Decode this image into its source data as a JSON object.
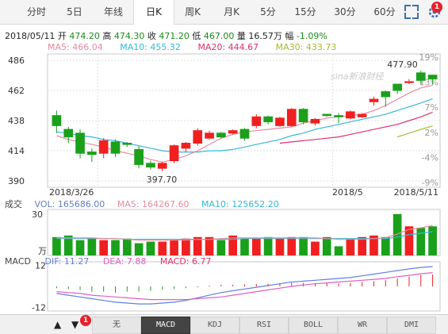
{
  "tabs": [
    {
      "label": "分时",
      "active": false
    },
    {
      "label": "5日",
      "active": false
    },
    {
      "label": "年线",
      "active": false
    },
    {
      "label": "日K",
      "active": true
    },
    {
      "label": "周K",
      "active": false
    },
    {
      "label": "月K",
      "active": false
    },
    {
      "label": "5分",
      "active": false
    },
    {
      "label": "15分",
      "active": false
    },
    {
      "label": "30分",
      "active": false
    },
    {
      "label": "60分",
      "active": false
    }
  ],
  "notification_count": "1",
  "info": {
    "date": "2018/05/11",
    "open_label": "开",
    "open": "474.20",
    "high_label": "高",
    "high": "474.30",
    "close_label": "收",
    "close": "471.20",
    "low_label": "低",
    "low": "467.00",
    "volume_label": "量",
    "volume": "16.57万",
    "change_label": "幅",
    "change": "-1.09%"
  },
  "ma_legend": {
    "ma5": "MA5: 466.04",
    "ma10": "MA10: 455.32",
    "ma20": "MA20: 444.67",
    "ma30": "MA30: 433.73"
  },
  "watermark": "sina新浪财经",
  "colors": {
    "up": "#f02020",
    "down": "#1aa01a",
    "ma5": "#e88aa0",
    "ma10": "#35b8d8",
    "ma20": "#e03070",
    "ma30": "#a8b830",
    "dif": "#6080e0",
    "dea": "#e060c0"
  },
  "chart_data": {
    "type": "candlestick",
    "price_axis": {
      "ticks": [
        "486",
        "462",
        "438",
        "414",
        "390"
      ],
      "ylim": [
        390,
        486
      ]
    },
    "pct_axis": {
      "ticks": [
        "19%",
        "13%",
        "7%",
        "2%",
        "-4%",
        "-9%"
      ]
    },
    "x_labels": [
      "2018/3/26",
      "2018/5",
      "2018/5/11"
    ],
    "annotations": {
      "high": "477.90",
      "low": "397.70"
    },
    "candles": [
      {
        "o": 442,
        "c": 434,
        "h": 446,
        "l": 428
      },
      {
        "o": 431,
        "c": 425,
        "h": 433,
        "l": 420
      },
      {
        "o": 428,
        "c": 412,
        "h": 431,
        "l": 408
      },
      {
        "o": 413,
        "c": 411,
        "h": 416,
        "l": 405
      },
      {
        "o": 412,
        "c": 422,
        "h": 424,
        "l": 408
      },
      {
        "o": 421,
        "c": 412,
        "h": 423,
        "l": 409
      },
      {
        "o": 420,
        "c": 419,
        "h": 421,
        "l": 417
      },
      {
        "o": 415,
        "c": 403,
        "h": 418,
        "l": 400
      },
      {
        "o": 404,
        "c": 401,
        "h": 406,
        "l": 399
      },
      {
        "o": 400,
        "c": 404,
        "h": 405,
        "l": 397.7
      },
      {
        "o": 406,
        "c": 418,
        "h": 419,
        "l": 404
      },
      {
        "o": 416,
        "c": 420,
        "h": 421,
        "l": 413
      },
      {
        "o": 420,
        "c": 430,
        "h": 432,
        "l": 418
      },
      {
        "o": 424,
        "c": 428,
        "h": 430,
        "l": 423
      },
      {
        "o": 428,
        "c": 425,
        "h": 429,
        "l": 424
      },
      {
        "o": 428,
        "c": 430,
        "h": 431,
        "l": 427
      },
      {
        "o": 431,
        "c": 424,
        "h": 432,
        "l": 422
      },
      {
        "o": 434,
        "c": 441,
        "h": 443,
        "l": 432
      },
      {
        "o": 441,
        "c": 437,
        "h": 442,
        "l": 435
      },
      {
        "o": 434,
        "c": 440,
        "h": 441,
        "l": 433
      },
      {
        "o": 434,
        "c": 447,
        "h": 448,
        "l": 433
      },
      {
        "o": 447,
        "c": 437,
        "h": 448,
        "l": 435
      },
      {
        "o": 436,
        "c": 439,
        "h": 440,
        "l": 434
      },
      {
        "o": 443,
        "c": 442,
        "h": 443,
        "l": 441
      },
      {
        "o": 442,
        "c": 441,
        "h": 444,
        "l": 436
      },
      {
        "o": 440,
        "c": 445,
        "h": 446,
        "l": 439
      },
      {
        "o": 441,
        "c": 443,
        "h": 444,
        "l": 440
      },
      {
        "o": 453,
        "c": 455,
        "h": 457,
        "l": 450
      },
      {
        "o": 461,
        "c": 457,
        "h": 462,
        "l": 449
      },
      {
        "o": 467,
        "c": 462,
        "h": 467,
        "l": 459
      },
      {
        "o": 469,
        "c": 469,
        "h": 471,
        "l": 467
      },
      {
        "o": 476,
        "c": 470,
        "h": 477.9,
        "l": 467
      },
      {
        "o": 474.2,
        "c": 471.2,
        "h": 474.3,
        "l": 467
      }
    ],
    "ma": {
      "ma5": [
        426,
        423,
        421,
        419,
        417,
        414,
        412,
        410,
        407,
        405,
        407,
        410,
        414,
        419,
        424,
        427,
        429,
        430,
        431,
        432,
        433,
        436,
        438,
        440,
        441,
        442,
        443,
        446,
        450,
        455,
        460,
        464,
        466.04
      ],
      "ma10": [
        429,
        428,
        426,
        425,
        423,
        422,
        420,
        418,
        416,
        414,
        413,
        413,
        413,
        414,
        414,
        415,
        417,
        419,
        421,
        423,
        426,
        428,
        431,
        433,
        435,
        437,
        439,
        441,
        443,
        446,
        449,
        452,
        455.32
      ],
      "ma20": [
        null,
        null,
        null,
        null,
        null,
        null,
        null,
        null,
        null,
        null,
        null,
        null,
        null,
        null,
        null,
        null,
        null,
        null,
        null,
        420,
        421,
        422,
        423,
        424,
        425,
        427,
        429,
        431,
        433,
        435,
        438,
        441,
        444.67
      ],
      "ma30": [
        null,
        null,
        null,
        null,
        null,
        null,
        null,
        null,
        null,
        null,
        null,
        null,
        null,
        null,
        null,
        null,
        null,
        null,
        null,
        null,
        null,
        null,
        null,
        null,
        null,
        null,
        null,
        null,
        null,
        425,
        428,
        431,
        433.73
      ]
    },
    "volume": {
      "ticks": [
        "30",
        "万"
      ],
      "legend": {
        "label": "成交",
        "vol": "VOL: 165686.00",
        "ma5": "MA5: 164267.60",
        "ma10": "MA10: 125652.20"
      },
      "values": [
        12,
        13,
        10,
        11,
        10,
        10,
        11,
        8,
        9,
        9,
        10,
        11,
        12,
        12,
        10,
        13,
        11,
        11,
        12,
        11,
        12,
        12,
        9,
        12,
        6,
        11,
        12,
        13,
        12,
        27,
        19,
        18,
        19
      ],
      "ma5": [
        11.5,
        11.5,
        11.5,
        11.5,
        11,
        11,
        10.5,
        10,
        10,
        10,
        10,
        10,
        10.5,
        10.5,
        11,
        11.5,
        11.5,
        11.5,
        11.5,
        11.5,
        11.5,
        11.5,
        11.5,
        11,
        10.5,
        10.5,
        10.5,
        11,
        11.5,
        14,
        17,
        18,
        19.5
      ],
      "ma10": [
        11,
        11,
        11,
        11,
        11,
        11,
        10.5,
        10.5,
        10.5,
        10.5,
        10.5,
        10.5,
        10.5,
        10.5,
        10.5,
        10.5,
        11,
        11,
        11,
        11,
        11,
        11,
        11,
        11,
        11,
        11,
        11,
        11,
        11,
        12,
        13.5,
        14.5,
        15.5
      ]
    },
    "macd": {
      "ticks": [
        "12",
        "-12"
      ],
      "legend": {
        "label": "MACD",
        "dif": "DIF: 11.27",
        "dea": "DEA: 7.88",
        "macd": "MACD: 6.77"
      },
      "hist": [
        -1,
        -1.5,
        -2,
        -3,
        -3,
        -3.5,
        -3,
        -3,
        -2.5,
        -2,
        -1.5,
        -1,
        -0.5,
        0.5,
        1,
        1,
        1.2,
        1.3,
        1.5,
        1.8,
        2,
        2,
        1.8,
        1.8,
        1.7,
        2,
        2.5,
        3,
        3.5,
        4.5,
        5.5,
        6.5,
        6.77
      ],
      "dif": [
        -4,
        -5,
        -6,
        -7,
        -8,
        -9,
        -9.5,
        -10,
        -10,
        -9.5,
        -9,
        -8,
        -6.5,
        -5,
        -3.5,
        -2.5,
        -1.5,
        -0.5,
        0.5,
        1.5,
        2.5,
        3,
        3.5,
        4,
        4.5,
        5,
        6,
        7,
        8,
        9,
        10,
        10.8,
        11.27
      ],
      "dea": [
        -3,
        -3.5,
        -4,
        -5,
        -5.5,
        -6,
        -6.5,
        -7,
        -7.5,
        -7.5,
        -7.5,
        -7.5,
        -7,
        -6.5,
        -6,
        -5,
        -4,
        -3,
        -2,
        -1,
        0,
        0.8,
        1.5,
        2,
        2.5,
        3,
        3.5,
        4,
        4.5,
        5.5,
        6.3,
        7.2,
        7.88
      ]
    }
  },
  "indicator_tabs": [
    {
      "label": "无",
      "active": false
    },
    {
      "label": "MACD",
      "active": true
    },
    {
      "label": "KDJ",
      "active": false
    },
    {
      "label": "RSI",
      "active": false
    },
    {
      "label": "BOLL",
      "active": false
    },
    {
      "label": "WR",
      "active": false
    },
    {
      "label": "DMI",
      "active": false
    }
  ],
  "nav": {
    "up_arrow": "▲",
    "down_arrow": "▼"
  }
}
